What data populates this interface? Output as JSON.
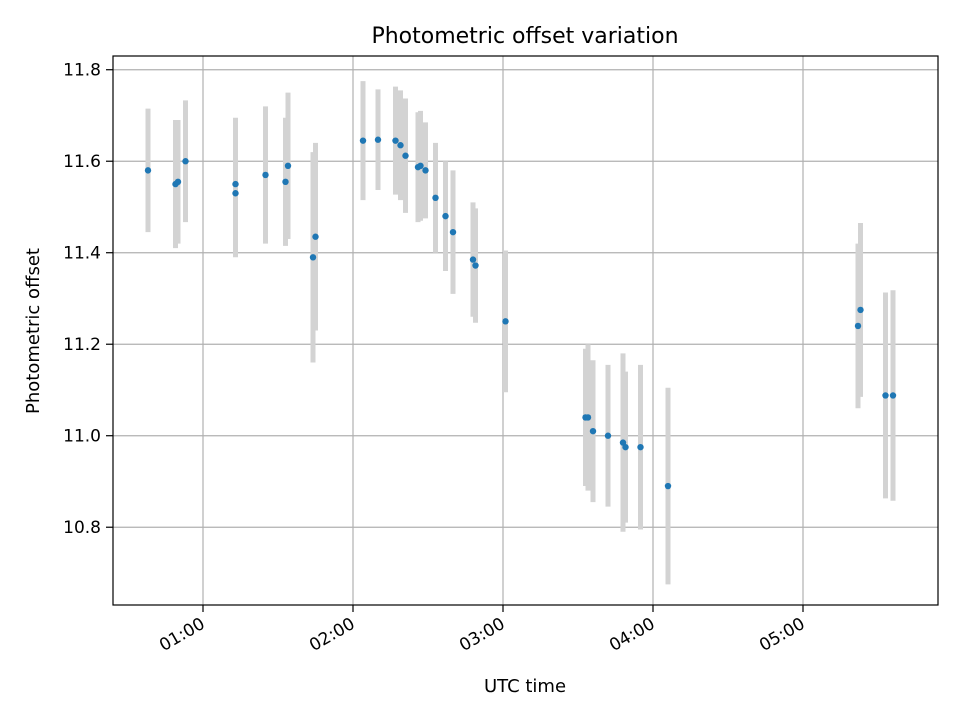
{
  "chart_data": {
    "type": "scatter",
    "title": "Photometric offset variation",
    "xlabel": "UTC time",
    "ylabel": "Photometric offset",
    "x_unit": "UTC time (HH:MM)",
    "xlim": [
      "00:24",
      "05:54"
    ],
    "ylim": [
      10.63,
      11.83
    ],
    "x_ticks": [
      "01:00",
      "02:00",
      "03:00",
      "04:00",
      "05:00"
    ],
    "y_ticks": [
      "10.8",
      "11.0",
      "11.2",
      "11.4",
      "11.6",
      "11.8"
    ],
    "grid": true,
    "point_color": "#1f77b4",
    "errorbar_color": "#d3d3d3",
    "series": [
      {
        "points": [
          {
            "x": "00:38",
            "y": 11.58,
            "err": 0.135
          },
          {
            "x": "00:49",
            "y": 11.55,
            "err": 0.14
          },
          {
            "x": "00:50",
            "y": 11.555,
            "err": 0.135
          },
          {
            "x": "00:53",
            "y": 11.6,
            "err": 0.133
          },
          {
            "x": "01:13",
            "y": 11.55,
            "err": 0.145
          },
          {
            "x": "01:13",
            "y": 11.53,
            "err": 0.14
          },
          {
            "x": "01:25",
            "y": 11.57,
            "err": 0.15
          },
          {
            "x": "01:33",
            "y": 11.555,
            "err": 0.14
          },
          {
            "x": "01:34",
            "y": 11.59,
            "err": 0.16
          },
          {
            "x": "01:44",
            "y": 11.39,
            "err": 0.23
          },
          {
            "x": "01:45",
            "y": 11.435,
            "err": 0.205
          },
          {
            "x": "02:04",
            "y": 11.645,
            "err": 0.13
          },
          {
            "x": "02:10",
            "y": 11.647,
            "err": 0.11
          },
          {
            "x": "02:17",
            "y": 11.645,
            "err": 0.118
          },
          {
            "x": "02:19",
            "y": 11.635,
            "err": 0.12
          },
          {
            "x": "02:21",
            "y": 11.612,
            "err": 0.125
          },
          {
            "x": "02:26",
            "y": 11.587,
            "err": 0.12
          },
          {
            "x": "02:27",
            "y": 11.59,
            "err": 0.12
          },
          {
            "x": "02:29",
            "y": 11.58,
            "err": 0.105
          },
          {
            "x": "02:33",
            "y": 11.52,
            "err": 0.12
          },
          {
            "x": "02:37",
            "y": 11.48,
            "err": 0.12
          },
          {
            "x": "02:40",
            "y": 11.445,
            "err": 0.135
          },
          {
            "x": "02:48",
            "y": 11.385,
            "err": 0.125
          },
          {
            "x": "02:49",
            "y": 11.372,
            "err": 0.125
          },
          {
            "x": "03:01",
            "y": 11.25,
            "err": 0.155
          },
          {
            "x": "03:33",
            "y": 11.04,
            "err": 0.15
          },
          {
            "x": "03:34",
            "y": 11.04,
            "err": 0.16
          },
          {
            "x": "03:36",
            "y": 11.01,
            "err": 0.155
          },
          {
            "x": "03:42",
            "y": 11.0,
            "err": 0.155
          },
          {
            "x": "03:48",
            "y": 10.985,
            "err": 0.195
          },
          {
            "x": "03:49",
            "y": 10.975,
            "err": 0.165
          },
          {
            "x": "03:55",
            "y": 10.975,
            "err": 0.18
          },
          {
            "x": "04:06",
            "y": 10.89,
            "err": 0.215
          },
          {
            "x": "05:22",
            "y": 11.24,
            "err": 0.18
          },
          {
            "x": "05:23",
            "y": 11.275,
            "err": 0.19
          },
          {
            "x": "05:33",
            "y": 11.088,
            "err": 0.225
          },
          {
            "x": "05:36",
            "y": 11.088,
            "err": 0.23
          }
        ]
      }
    ]
  }
}
